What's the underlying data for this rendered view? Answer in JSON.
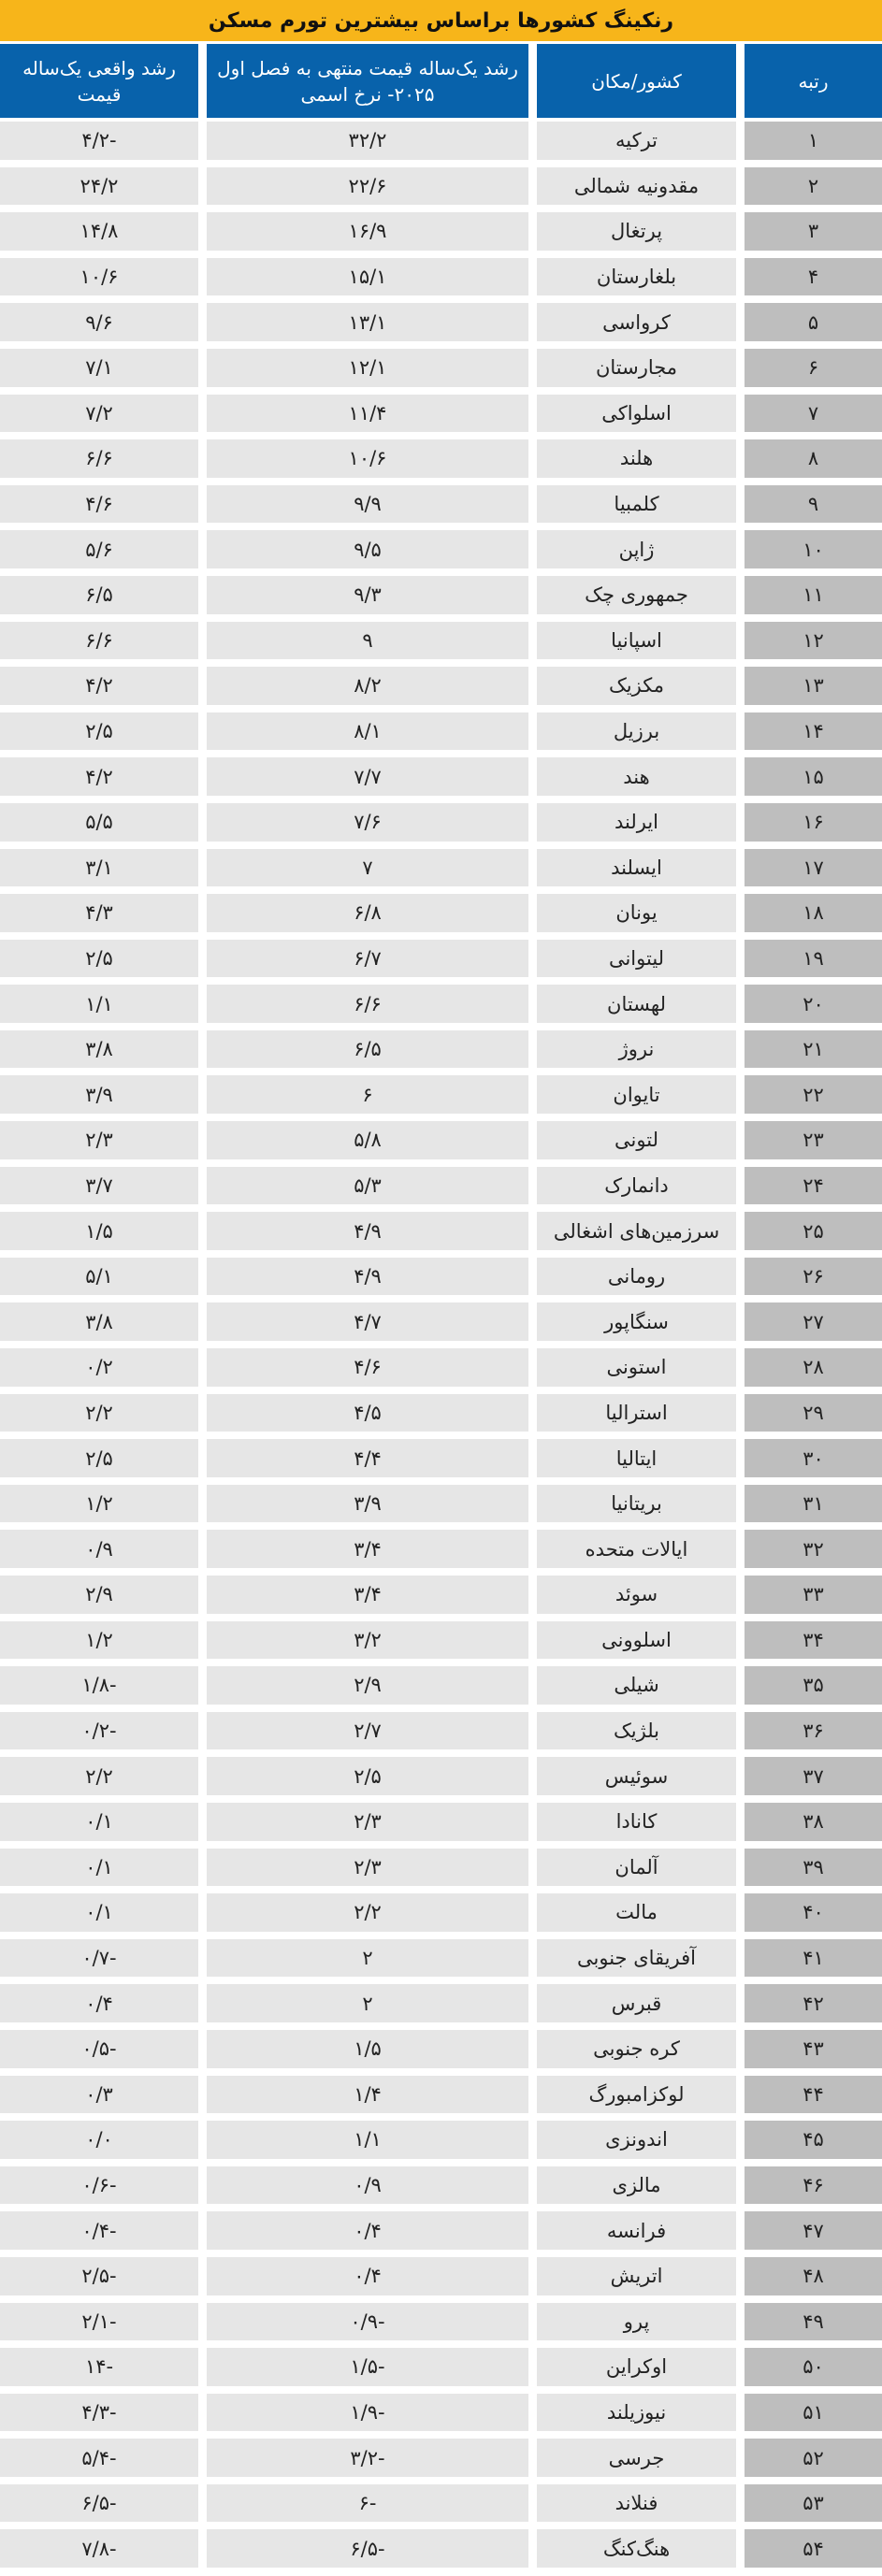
{
  "title": "رنکینگ کشورها براساس بیشترین تورم مسکن",
  "headers": {
    "real_growth": "رشد واقعی یک‌ساله قیمت",
    "nominal_growth": "رشد یک‌ساله قیمت منتهی به فصل اول ۲۰۲۵- نرخ اسمی",
    "country": "کشور/مکان",
    "rank": "رتبه"
  },
  "rows": [
    {
      "rank": "۱",
      "country": "ترکیه",
      "nominal": "۳۲/۲",
      "real": "-۴/۲"
    },
    {
      "rank": "۲",
      "country": "مقدونیه شمالی",
      "nominal": "۲۲/۶",
      "real": "۲۴/۲"
    },
    {
      "rank": "۳",
      "country": "پرتغال",
      "nominal": "۱۶/۹",
      "real": "۱۴/۸"
    },
    {
      "rank": "۴",
      "country": "بلغارستان",
      "nominal": "۱۵/۱",
      "real": "۱۰/۶"
    },
    {
      "rank": "۵",
      "country": "کرواسی",
      "nominal": "۱۳/۱",
      "real": "۹/۶"
    },
    {
      "rank": "۶",
      "country": "مجارستان",
      "nominal": "۱۲/۱",
      "real": "۷/۱"
    },
    {
      "rank": "۷",
      "country": "اسلواکی",
      "nominal": "۱۱/۴",
      "real": "۷/۲"
    },
    {
      "rank": "۸",
      "country": "هلند",
      "nominal": "۱۰/۶",
      "real": "۶/۶"
    },
    {
      "rank": "۹",
      "country": "کلمبیا",
      "nominal": "۹/۹",
      "real": "۴/۶"
    },
    {
      "rank": "۱۰",
      "country": "ژاپن",
      "nominal": "۹/۵",
      "real": "۵/۶"
    },
    {
      "rank": "۱۱",
      "country": "جمهوری چک",
      "nominal": "۹/۳",
      "real": "۶/۵"
    },
    {
      "rank": "۱۲",
      "country": "اسپانیا",
      "nominal": "۹",
      "real": "۶/۶"
    },
    {
      "rank": "۱۳",
      "country": "مکزیک",
      "nominal": "۸/۲",
      "real": "۴/۲"
    },
    {
      "rank": "۱۴",
      "country": "برزیل",
      "nominal": "۸/۱",
      "real": "۲/۵"
    },
    {
      "rank": "۱۵",
      "country": "هند",
      "nominal": "۷/۷",
      "real": "۴/۲"
    },
    {
      "rank": "۱۶",
      "country": "ایرلند",
      "nominal": "۷/۶",
      "real": "۵/۵"
    },
    {
      "rank": "۱۷",
      "country": "ایسلند",
      "nominal": "۷",
      "real": "۳/۱"
    },
    {
      "rank": "۱۸",
      "country": "یونان",
      "nominal": "۶/۸",
      "real": "۴/۳"
    },
    {
      "rank": "۱۹",
      "country": "لیتوانی",
      "nominal": "۶/۷",
      "real": "۲/۵"
    },
    {
      "rank": "۲۰",
      "country": "لهستان",
      "nominal": "۶/۶",
      "real": "۱/۱"
    },
    {
      "rank": "۲۱",
      "country": "نروژ",
      "nominal": "۶/۵",
      "real": "۳/۸"
    },
    {
      "rank": "۲۲",
      "country": "تایوان",
      "nominal": "۶",
      "real": "۳/۹"
    },
    {
      "rank": "۲۳",
      "country": "لتونی",
      "nominal": "۵/۸",
      "real": "۲/۳"
    },
    {
      "rank": "۲۴",
      "country": "دانمارک",
      "nominal": "۵/۳",
      "real": "۳/۷"
    },
    {
      "rank": "۲۵",
      "country": "سرزمین‌های اشغالی",
      "nominal": "۴/۹",
      "real": "۱/۵"
    },
    {
      "rank": "۲۶",
      "country": "رومانی",
      "nominal": "۴/۹",
      "real": "۵/۱"
    },
    {
      "rank": "۲۷",
      "country": "سنگاپور",
      "nominal": "۴/۷",
      "real": "۳/۸"
    },
    {
      "rank": "۲۸",
      "country": "استونی",
      "nominal": "۴/۶",
      "real": "۰/۲"
    },
    {
      "rank": "۲۹",
      "country": "استرالیا",
      "nominal": "۴/۵",
      "real": "۲/۲"
    },
    {
      "rank": "۳۰",
      "country": "ایتالیا",
      "nominal": "۴/۴",
      "real": "۲/۵"
    },
    {
      "rank": "۳۱",
      "country": "بریتانیا",
      "nominal": "۳/۹",
      "real": "۱/۲"
    },
    {
      "rank": "۳۲",
      "country": "ایالات متحده",
      "nominal": "۳/۴",
      "real": "۰/۹"
    },
    {
      "rank": "۳۳",
      "country": "سوئد",
      "nominal": "۳/۴",
      "real": "۲/۹"
    },
    {
      "rank": "۳۴",
      "country": "اسلوونی",
      "nominal": "۳/۲",
      "real": "۱/۲"
    },
    {
      "rank": "۳۵",
      "country": "شیلی",
      "nominal": "۲/۹",
      "real": "-۱/۸"
    },
    {
      "rank": "۳۶",
      "country": "بلژیک",
      "nominal": "۲/۷",
      "real": "-۰/۲"
    },
    {
      "rank": "۳۷",
      "country": "سوئیس",
      "nominal": "۲/۵",
      "real": "۲/۲"
    },
    {
      "rank": "۳۸",
      "country": "کانادا",
      "nominal": "۲/۳",
      "real": "۰/۱"
    },
    {
      "rank": "۳۹",
      "country": "آلمان",
      "nominal": "۲/۳",
      "real": "۰/۱"
    },
    {
      "rank": "۴۰",
      "country": "مالت",
      "nominal": "۲/۲",
      "real": "۰/۱"
    },
    {
      "rank": "۴۱",
      "country": "آفریقای جنوبی",
      "nominal": "۲",
      "real": "-۰/۷"
    },
    {
      "rank": "۴۲",
      "country": "قبرس",
      "nominal": "۲",
      "real": "۰/۴"
    },
    {
      "rank": "۴۳",
      "country": "کره جنوبی",
      "nominal": "۱/۵",
      "real": "-۰/۵"
    },
    {
      "rank": "۴۴",
      "country": "لوکزامبورگ",
      "nominal": "۱/۴",
      "real": "۰/۳"
    },
    {
      "rank": "۴۵",
      "country": "اندونزی",
      "nominal": "۱/۱",
      "real": "۰/۰"
    },
    {
      "rank": "۴۶",
      "country": "مالزی",
      "nominal": "۰/۹",
      "real": "-۰/۶"
    },
    {
      "rank": "۴۷",
      "country": "فرانسه",
      "nominal": "۰/۴",
      "real": "-۰/۴"
    },
    {
      "rank": "۴۸",
      "country": "اتریش",
      "nominal": "۰/۴",
      "real": "-۲/۵"
    },
    {
      "rank": "۴۹",
      "country": "پرو",
      "nominal": "-۰/۹",
      "real": "-۲/۱"
    },
    {
      "rank": "۵۰",
      "country": "اوکراین",
      "nominal": "-۱/۵",
      "real": "-۱۴"
    },
    {
      "rank": "۵۱",
      "country": "نیوزیلند",
      "nominal": "-۱/۹",
      "real": "-۴/۳"
    },
    {
      "rank": "۵۲",
      "country": "جرسی",
      "nominal": "-۳/۲",
      "real": "-۵/۴"
    },
    {
      "rank": "۵۳",
      "country": "فنلاند",
      "nominal": "-۶",
      "real": "-۶/۵"
    },
    {
      "rank": "۵۴",
      "country": "هنگ‌کنگ",
      "nominal": "-۶/۵",
      "real": "-۷/۸"
    }
  ],
  "colors": {
    "title_bg": "#F7B51A",
    "header_bg": "#0862AB",
    "cell_bg": "#E6E6E6",
    "rank_bg": "#BEBEBE"
  }
}
